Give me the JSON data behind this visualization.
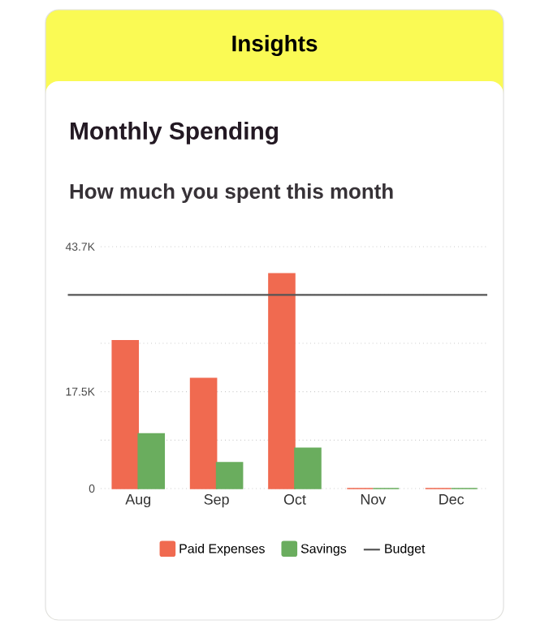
{
  "chart_data": {
    "type": "bar",
    "title": "Monthly Spending",
    "subtitle": "How much you spent this month",
    "annotations": [
      "Insights"
    ],
    "categories": [
      "Aug",
      "Sep",
      "Oct",
      "Nov",
      "Dec"
    ],
    "series": [
      {
        "name": "Paid Expenses",
        "color": "#f06a50",
        "values": [
          26700,
          19900,
          38800,
          0,
          0
        ]
      },
      {
        "name": "Savings",
        "color": "#6aad5e",
        "values": [
          9900,
          4700,
          7300,
          0,
          0
        ]
      }
    ],
    "ylim": [
      0,
      43700
    ],
    "yticks": [
      0,
      {
        "value": 8750,
        "label": null
      },
      {
        "value": 17500,
        "label": "17.5K"
      },
      {
        "value": 26250,
        "label": null
      },
      {
        "value": 35000,
        "label": null
      },
      {
        "value": 43700,
        "label": "43.7K"
      }
    ],
    "ref_lines": [
      {
        "axis": "y",
        "value": 35000,
        "label": "Budget",
        "color": "#555555"
      }
    ],
    "grid": "y",
    "legend": "bottom"
  }
}
